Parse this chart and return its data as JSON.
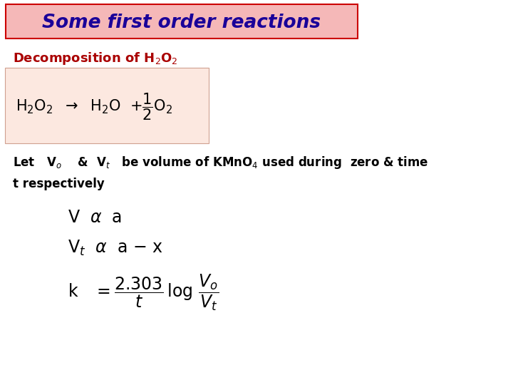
{
  "title": "Some first order reactions",
  "title_bg": "#f5b8b8",
  "title_border": "#cc0000",
  "title_color": "#1a0099",
  "bg_color": "#ffffff",
  "decomp_label_color": "#aa0000",
  "reaction_box_bg": "#fce8e0",
  "reaction_box_border": "#d0a090",
  "body_text_color": "#000000",
  "title_fontsize": 19,
  "decomp_fontsize": 13,
  "rxn_fontsize": 15,
  "body_fontsize": 12,
  "math_fontsize": 17
}
